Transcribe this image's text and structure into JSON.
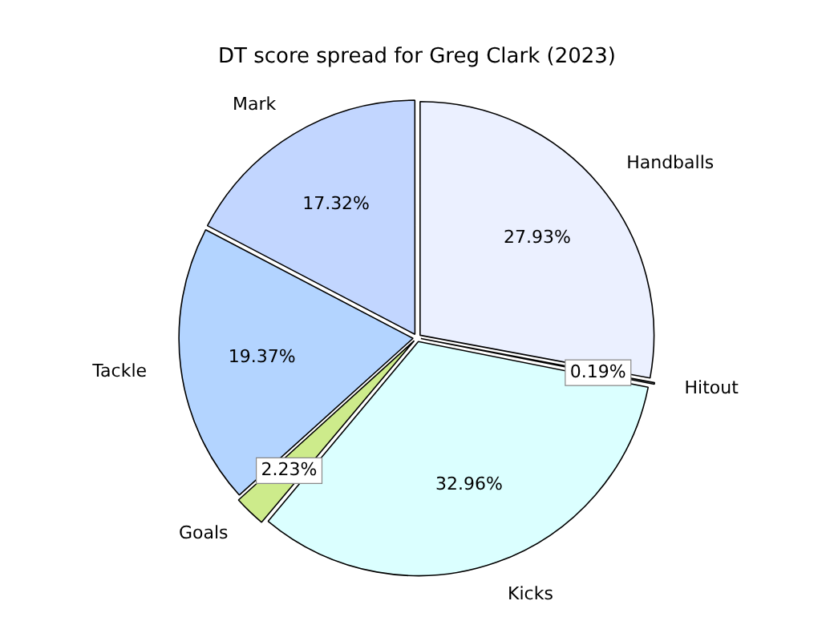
{
  "chart_data": {
    "type": "pie",
    "title": "DT score spread for Greg Clark (2023)",
    "categories": [
      "Handballs",
      "Hitout",
      "Kicks",
      "Goals",
      "Tackle",
      "Mark"
    ],
    "values": [
      27.93,
      0.19,
      32.96,
      2.23,
      19.37,
      17.32
    ],
    "value_labels": [
      "27.93%",
      "0.19%",
      "32.96%",
      "2.23%",
      "19.37%",
      "17.32%"
    ],
    "colors": [
      "#ebf0ff",
      "#e0f4ff",
      "#dbffff",
      "#cdeb8b",
      "#b3d4ff",
      "#c2d6ff"
    ],
    "legend": false
  }
}
